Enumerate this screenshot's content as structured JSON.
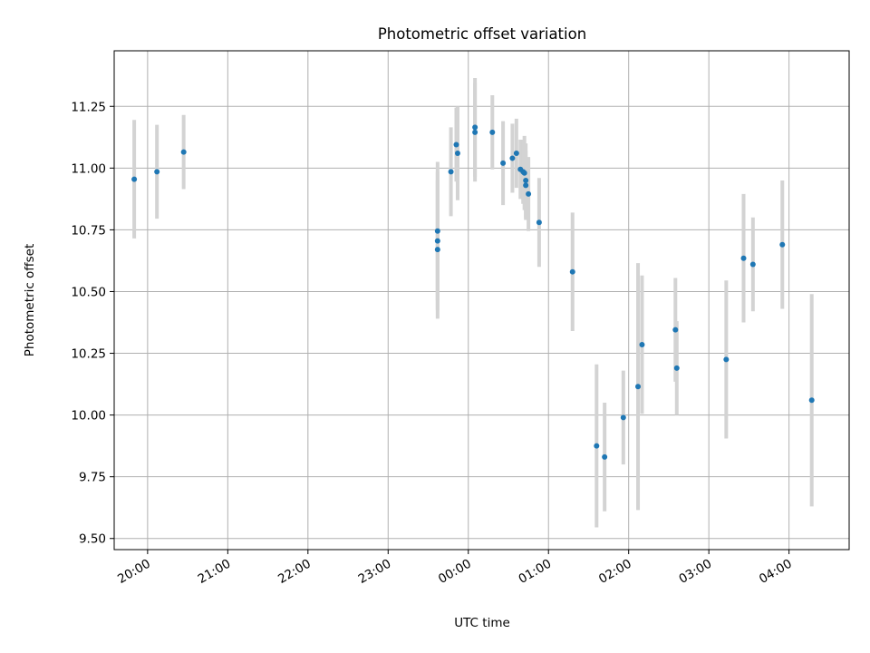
{
  "chart_data": {
    "type": "scatter",
    "title": "Photometric offset variation",
    "xlabel": "UTC time",
    "ylabel": "Photometric offset",
    "x_ticks": [
      "20:00",
      "21:00",
      "22:00",
      "23:00",
      "00:00",
      "01:00",
      "02:00",
      "03:00",
      "04:00"
    ],
    "y_ticks": [
      "9.50",
      "9.75",
      "10.00",
      "10.25",
      "10.50",
      "10.75",
      "11.00",
      "11.25"
    ],
    "xlim": [
      "19:35",
      "04:45"
    ],
    "ylim": [
      9.455,
      11.475
    ],
    "grid": true,
    "colors": {
      "points": "#1f77b4",
      "errorbars": "#d3d3d3"
    },
    "points": [
      {
        "t": "19:50",
        "y": 10.955,
        "err": 0.24
      },
      {
        "t": "20:07",
        "y": 10.985,
        "err": 0.19
      },
      {
        "t": "20:27",
        "y": 11.065,
        "err": 0.15
      },
      {
        "t": "23:37",
        "y": 10.745,
        "err": 0.28
      },
      {
        "t": "23:37",
        "y": 10.705,
        "err": 0.28
      },
      {
        "t": "23:37",
        "y": 10.67,
        "err": 0.28
      },
      {
        "t": "23:47",
        "y": 10.985,
        "err": 0.18
      },
      {
        "t": "23:51",
        "y": 11.095,
        "err": 0.15
      },
      {
        "t": "23:52",
        "y": 11.06,
        "err": 0.19
      },
      {
        "t": "00:05",
        "y": 11.165,
        "err": 0.2
      },
      {
        "t": "00:05",
        "y": 11.145,
        "err": 0.2
      },
      {
        "t": "00:18",
        "y": 11.145,
        "err": 0.15
      },
      {
        "t": "00:26",
        "y": 11.02,
        "err": 0.17
      },
      {
        "t": "00:33",
        "y": 11.04,
        "err": 0.14
      },
      {
        "t": "00:36",
        "y": 11.06,
        "err": 0.14
      },
      {
        "t": "00:39",
        "y": 10.995,
        "err": 0.12
      },
      {
        "t": "00:41",
        "y": 10.985,
        "err": 0.13
      },
      {
        "t": "00:42",
        "y": 10.98,
        "err": 0.15
      },
      {
        "t": "00:43",
        "y": 10.95,
        "err": 0.15
      },
      {
        "t": "00:43",
        "y": 10.93,
        "err": 0.14
      },
      {
        "t": "00:45",
        "y": 10.895,
        "err": 0.15
      },
      {
        "t": "00:53",
        "y": 10.78,
        "err": 0.18
      },
      {
        "t": "01:18",
        "y": 10.58,
        "err": 0.24
      },
      {
        "t": "01:36",
        "y": 9.875,
        "err": 0.33
      },
      {
        "t": "01:42",
        "y": 9.83,
        "err": 0.22
      },
      {
        "t": "01:56",
        "y": 9.99,
        "err": 0.19
      },
      {
        "t": "02:07",
        "y": 10.115,
        "err": 0.5
      },
      {
        "t": "02:10",
        "y": 10.285,
        "err": 0.28
      },
      {
        "t": "02:35",
        "y": 10.345,
        "err": 0.21
      },
      {
        "t": "02:36",
        "y": 10.19,
        "err": 0.19
      },
      {
        "t": "03:13",
        "y": 10.225,
        "err": 0.32
      },
      {
        "t": "03:26",
        "y": 10.635,
        "err": 0.26
      },
      {
        "t": "03:33",
        "y": 10.61,
        "err": 0.19
      },
      {
        "t": "03:55",
        "y": 10.69,
        "err": 0.26
      },
      {
        "t": "04:17",
        "y": 10.06,
        "err": 0.43
      }
    ]
  }
}
